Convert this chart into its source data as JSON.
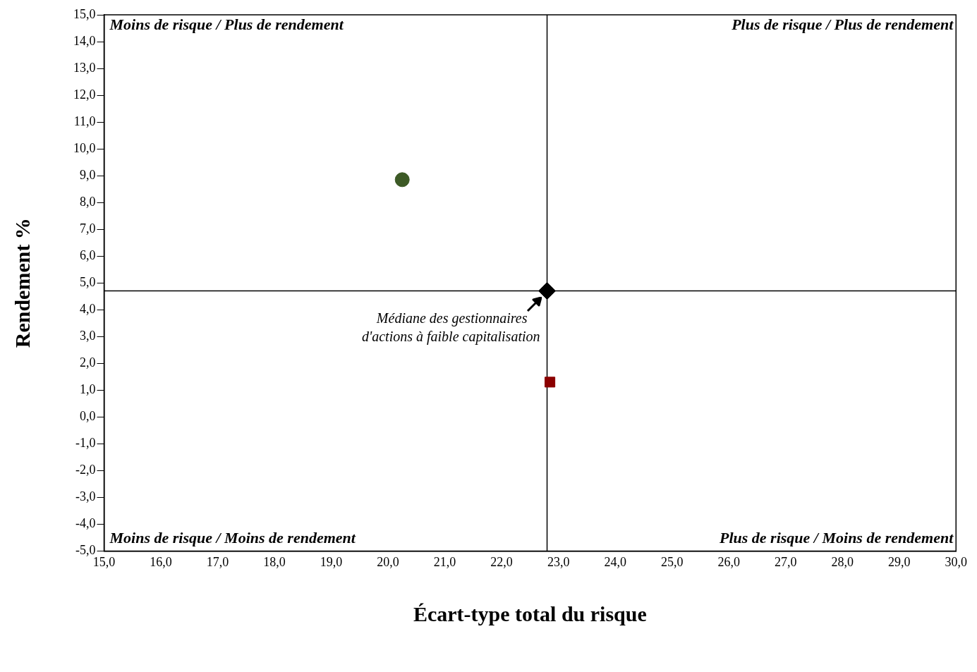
{
  "chart_data": {
    "type": "scatter",
    "xlabel": "Écart-type total du risque",
    "ylabel": "Rendement %",
    "xlim": [
      15,
      30
    ],
    "ylim": [
      -5,
      15
    ],
    "xticks": [
      {
        "value": 15,
        "label": "15,0"
      },
      {
        "value": 16,
        "label": "16,0"
      },
      {
        "value": 17,
        "label": "17,0"
      },
      {
        "value": 18,
        "label": "18,0"
      },
      {
        "value": 19,
        "label": "19,0"
      },
      {
        "value": 20,
        "label": "20,0"
      },
      {
        "value": 21,
        "label": "21,0"
      },
      {
        "value": 22,
        "label": "22,0"
      },
      {
        "value": 23,
        "label": "23,0"
      },
      {
        "value": 24,
        "label": "24,0"
      },
      {
        "value": 25,
        "label": "25,0"
      },
      {
        "value": 26,
        "label": "26,0"
      },
      {
        "value": 27,
        "label": "27,0"
      },
      {
        "value": 28,
        "label": "28,0"
      },
      {
        "value": 29,
        "label": "29,0"
      },
      {
        "value": 30,
        "label": "30,0"
      }
    ],
    "yticks": [
      {
        "value": -5,
        "label": "-5,0"
      },
      {
        "value": -4,
        "label": "-4,0"
      },
      {
        "value": -3,
        "label": "-3,0"
      },
      {
        "value": -2,
        "label": "-2,0"
      },
      {
        "value": -1,
        "label": "-1,0"
      },
      {
        "value": 0,
        "label": "0,0"
      },
      {
        "value": 1,
        "label": "1,0"
      },
      {
        "value": 2,
        "label": "2,0"
      },
      {
        "value": 3,
        "label": "3,0"
      },
      {
        "value": 4,
        "label": "4,0"
      },
      {
        "value": 5,
        "label": "5,0"
      },
      {
        "value": 6,
        "label": "6,0"
      },
      {
        "value": 7,
        "label": "7,0"
      },
      {
        "value": 8,
        "label": "8,0"
      },
      {
        "value": 9,
        "label": "9,0"
      },
      {
        "value": 10,
        "label": "10,0"
      },
      {
        "value": 11,
        "label": "11,0"
      },
      {
        "value": 12,
        "label": "12,0"
      },
      {
        "value": 13,
        "label": "13,0"
      },
      {
        "value": 14,
        "label": "14,0"
      },
      {
        "value": 15,
        "label": "15,0"
      }
    ],
    "series": [
      {
        "color": "#3d5a26",
        "marker": "circle",
        "x": [
          20.25
        ],
        "values": [
          8.85
        ]
      },
      {
        "color": "#8b0000",
        "marker": "square",
        "x": [
          22.85
        ],
        "values": [
          1.3
        ]
      },
      {
        "color": "#000000",
        "marker": "diamond",
        "x": [
          22.8
        ],
        "values": [
          4.7
        ]
      }
    ],
    "ref_lines": [
      {
        "axis": "x",
        "value": 22.8,
        "color": "#000000"
      },
      {
        "axis": "y",
        "value": 4.7,
        "color": "#000000"
      }
    ],
    "annotations": [
      "Moins de risque / Plus de rendement",
      "Plus de risque / Plus de rendement",
      "Moins de risque / Moins de rendement",
      "Plus de risque / Moins de rendement",
      {
        "text": "Médiane des gestionnaires d'actions à faible capitalisation",
        "x": 22.8,
        "y": 4.7
      }
    ],
    "grid": false,
    "legend": false
  }
}
